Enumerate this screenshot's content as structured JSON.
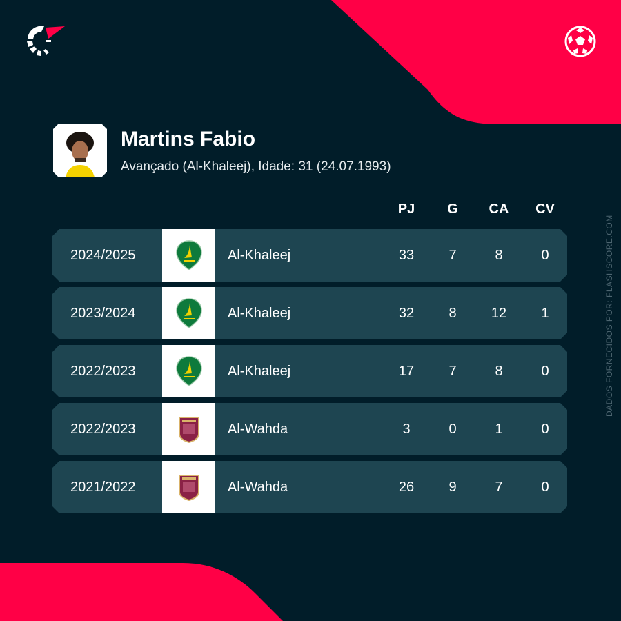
{
  "colors": {
    "background": "#011d29",
    "accent": "#ff0046",
    "row": "#1e4551"
  },
  "icons": {
    "logo": "flashscore-logo-icon",
    "sport": "football-icon"
  },
  "player": {
    "name": "Martins Fabio",
    "subtitle": "Avançado (Al-Khaleej), Idade: 31 (24.07.1993)"
  },
  "columns": [
    "PJ",
    "G",
    "CA",
    "CV"
  ],
  "rows": [
    {
      "season": "2024/2025",
      "team": "Al-Khaleej",
      "crest": "al-khaleej",
      "pj": "33",
      "g": "7",
      "ca": "8",
      "cv": "0"
    },
    {
      "season": "2023/2024",
      "team": "Al-Khaleej",
      "crest": "al-khaleej",
      "pj": "32",
      "g": "8",
      "ca": "12",
      "cv": "1"
    },
    {
      "season": "2022/2023",
      "team": "Al-Khaleej",
      "crest": "al-khaleej",
      "pj": "17",
      "g": "7",
      "ca": "8",
      "cv": "0"
    },
    {
      "season": "2022/2023",
      "team": "Al-Wahda",
      "crest": "al-wahda",
      "pj": "3",
      "g": "0",
      "ca": "1",
      "cv": "0"
    },
    {
      "season": "2021/2022",
      "team": "Al-Wahda",
      "crest": "al-wahda",
      "pj": "26",
      "g": "9",
      "ca": "7",
      "cv": "0"
    }
  ],
  "source": "DADOS FORNECIDOS POR: FLASHSCORE.COM"
}
